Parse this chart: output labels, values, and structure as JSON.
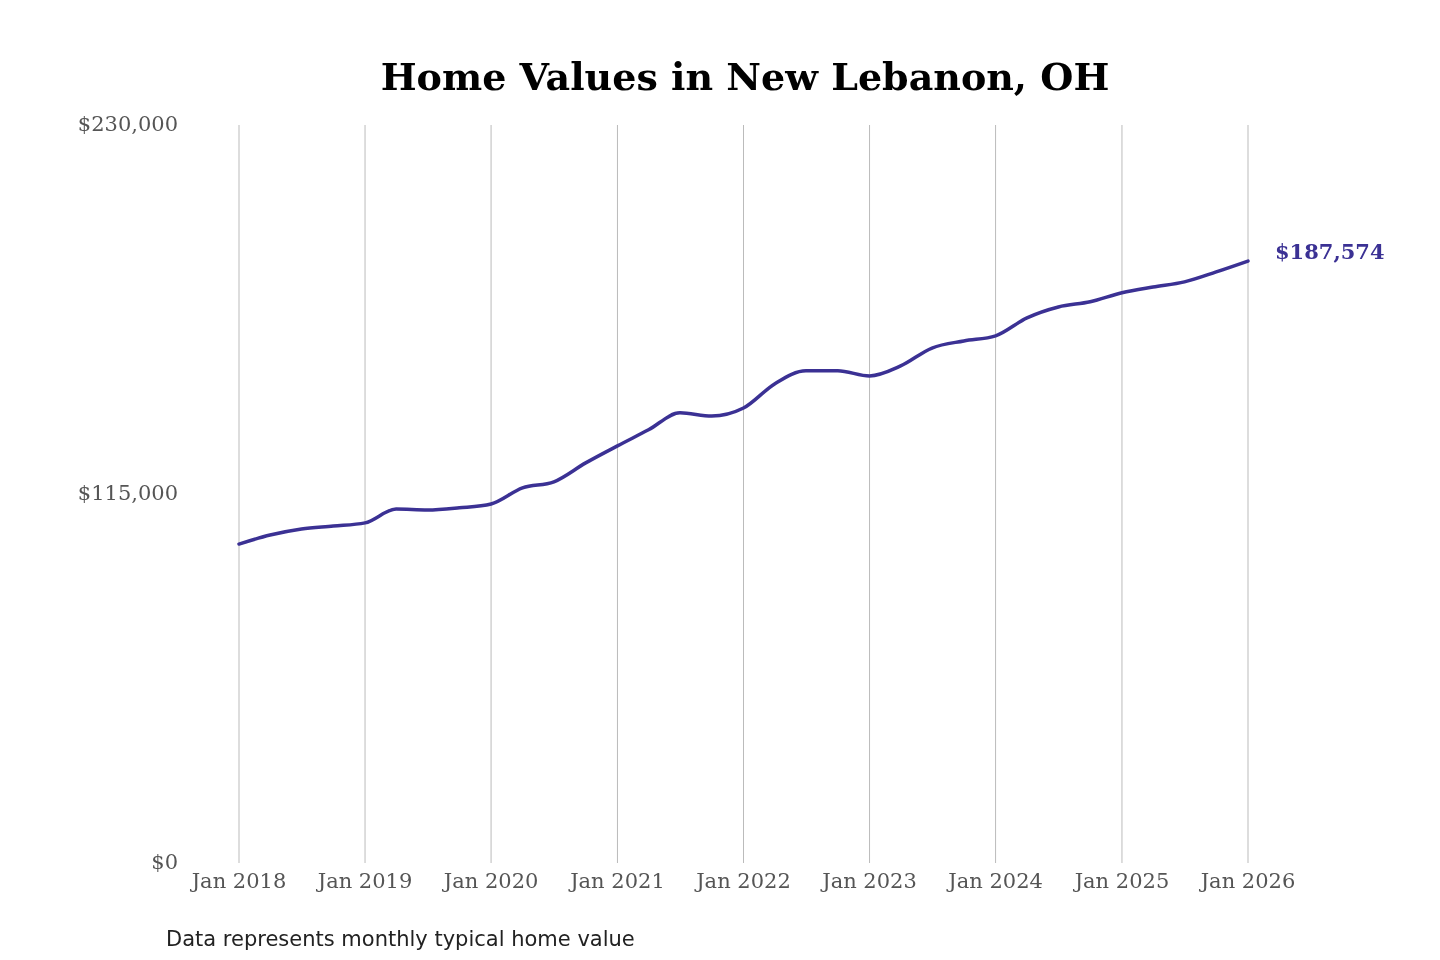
{
  "chart_data": {
    "type": "line",
    "title": "Home Values in New Lebanon, OH",
    "x": [
      "2018-01",
      "2018-04",
      "2018-07",
      "2018-10",
      "2019-01",
      "2019-04",
      "2019-07",
      "2019-10",
      "2020-01",
      "2020-04",
      "2020-07",
      "2020-10",
      "2021-01",
      "2021-04",
      "2021-07",
      "2021-10",
      "2022-01",
      "2022-04",
      "2022-07",
      "2022-10",
      "2023-01",
      "2023-04",
      "2023-07",
      "2023-10",
      "2024-01",
      "2024-04",
      "2024-07",
      "2024-10",
      "2025-01",
      "2025-04",
      "2025-07",
      "2025-10",
      "2026-01"
    ],
    "xlim": [
      "2018-01",
      "2026-01"
    ],
    "series": [
      {
        "color": "#3b3194",
        "values": [
          99400,
          102200,
          104100,
          105000,
          106000,
          110300,
          110000,
          110700,
          111900,
          116900,
          118800,
          124700,
          130000,
          135000,
          140300,
          139300,
          141800,
          149300,
          153400,
          153400,
          151800,
          154900,
          160500,
          162700,
          164300,
          169900,
          173300,
          174900,
          177700,
          179500,
          181100,
          184200,
          187574
        ]
      }
    ],
    "xticks": [
      {
        "value": "2018-01",
        "label": "Jan 2018"
      },
      {
        "value": "2019-01",
        "label": "Jan 2019"
      },
      {
        "value": "2020-01",
        "label": "Jan 2020"
      },
      {
        "value": "2021-01",
        "label": "Jan 2021"
      },
      {
        "value": "2022-01",
        "label": "Jan 2022"
      },
      {
        "value": "2023-01",
        "label": "Jan 2023"
      },
      {
        "value": "2024-01",
        "label": "Jan 2024"
      },
      {
        "value": "2025-01",
        "label": "Jan 2025"
      },
      {
        "value": "2026-01",
        "label": "Jan 2026"
      }
    ],
    "ylim": [
      0,
      230000
    ],
    "yticks": [
      {
        "value": 0,
        "label": "$0"
      },
      {
        "value": 115000,
        "label": "$115,000"
      },
      {
        "value": 230000,
        "label": "$230,000"
      }
    ],
    "grid": "x",
    "marker": "none",
    "line_style": "solid",
    "annotations": [
      {
        "text": "$187,574",
        "x": "2026-01",
        "y": 187574
      },
      "Data represents monthly typical home value"
    ]
  }
}
